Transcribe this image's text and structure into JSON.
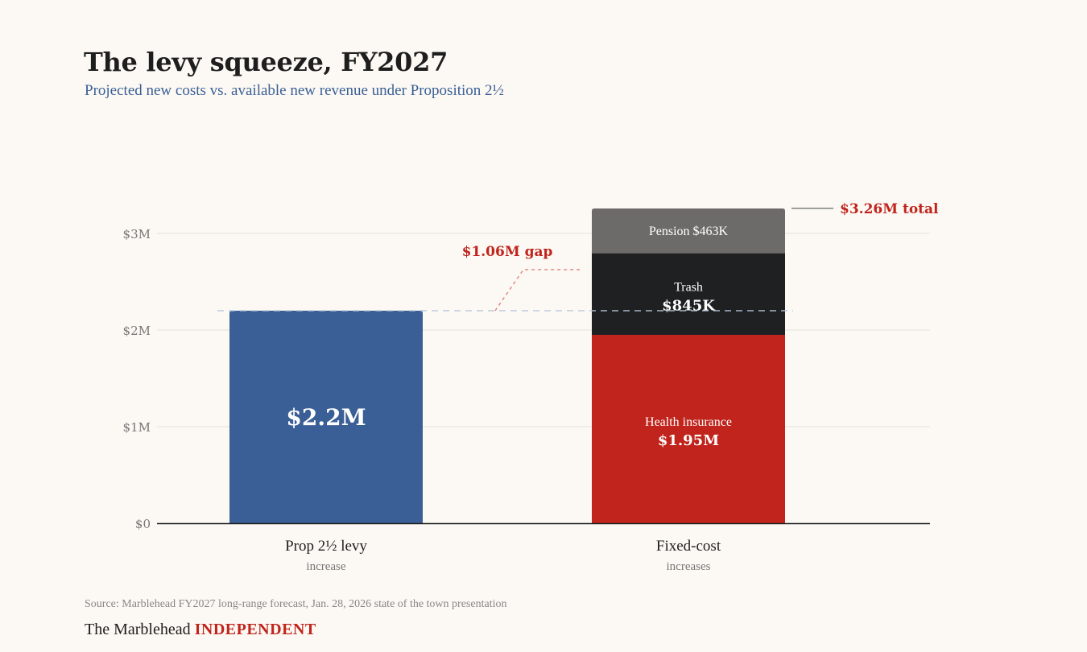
{
  "header": {
    "title": "The levy squeeze, FY2027",
    "subtitle": "Projected new costs vs. available new revenue under Proposition 2½"
  },
  "footer": {
    "source": "Source: Marblehead FY2027 long-range forecast, Jan. 28, 2026 state of the town presentation",
    "brand_prefix": "The Marblehead",
    "brand_accent": "INDEPENDENT"
  },
  "colors": {
    "background": "#fcf9f4",
    "levy": "#3a5f96",
    "health": "#c0241c",
    "trash": "#1f2022",
    "pension": "#6d6b69",
    "accent_red": "#c0241c",
    "gridline": "#e4e1dc",
    "axis": "#1e1e1e",
    "tick_text": "#777777",
    "ref_line": "#b9c6da"
  },
  "chart_data": {
    "type": "bar",
    "stacked": true,
    "title": "The levy squeeze, FY2027",
    "subtitle": "Projected new costs vs. available new revenue under Proposition 2½",
    "xlabel": "",
    "ylabel": "",
    "ylim": [
      0,
      3000000
    ],
    "yticks": [
      0,
      1000000,
      2000000,
      3000000
    ],
    "ytick_labels": [
      "$0",
      "$1M",
      "$2M",
      "$3M"
    ],
    "grid": true,
    "legend": "none",
    "categories": [
      {
        "label": "Prop 2½ levy",
        "sublabel": "increase"
      },
      {
        "label": "Fixed-cost",
        "sublabel": "increases"
      }
    ],
    "series": [
      {
        "name": "Levy increase",
        "category": 0,
        "value": 2200000,
        "label": "",
        "value_label": "$2.2M",
        "color_key": "levy"
      },
      {
        "name": "Health insurance",
        "category": 1,
        "value": 1950000,
        "label": "Health insurance",
        "value_label": "$1.95M",
        "color_key": "health"
      },
      {
        "name": "Trash",
        "category": 1,
        "value": 845000,
        "label": "Trash",
        "value_label": "$845K",
        "color_key": "trash"
      },
      {
        "name": "Pension",
        "category": 1,
        "value": 463000,
        "label": "Pension $463K",
        "value_label": "",
        "color_key": "pension"
      }
    ],
    "annotations": {
      "reference_line_value": 2200000,
      "gap_label": "$1.06M gap",
      "gap_value": 1060000,
      "total_label": "$3.26M total",
      "total_value": 3260000
    }
  }
}
